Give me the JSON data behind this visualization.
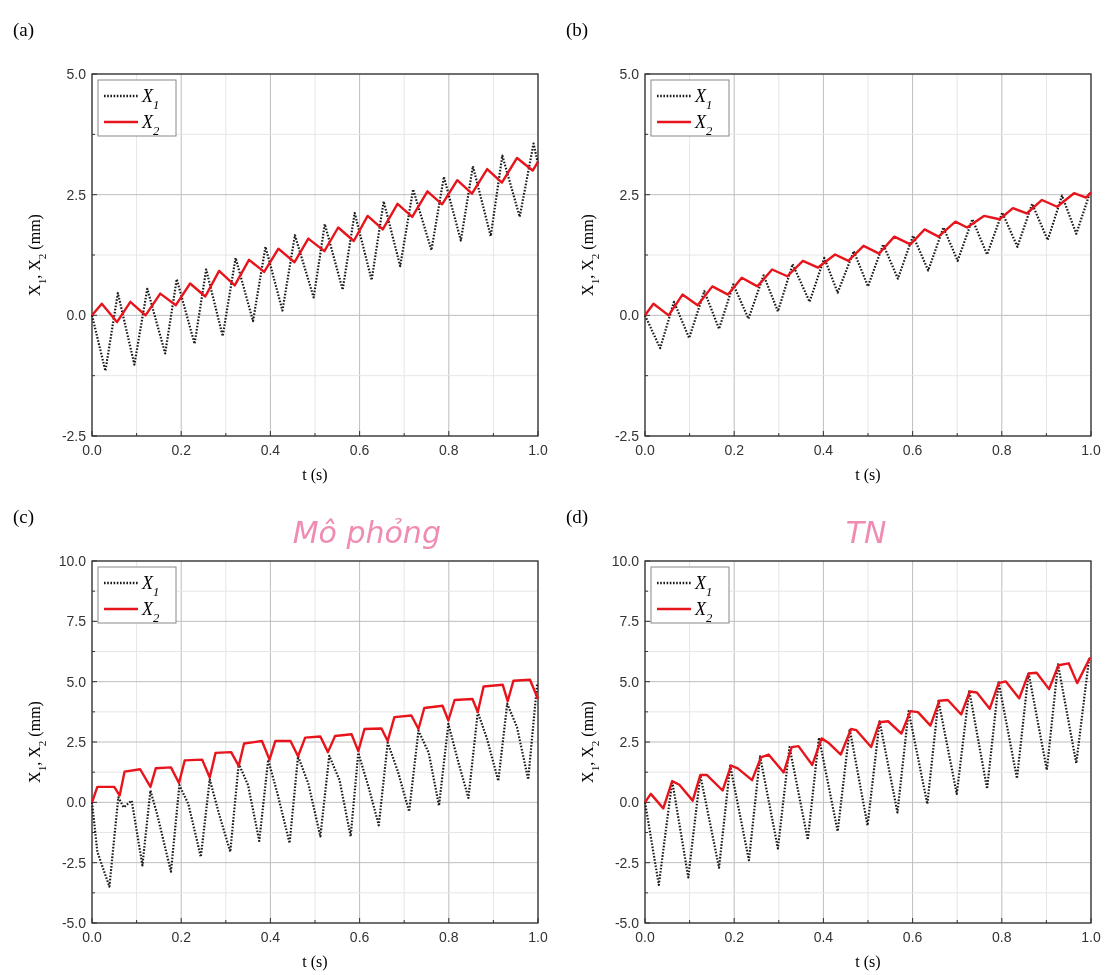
{
  "chart_data": [
    {
      "type": "line",
      "title": "(a)",
      "xlabel": "t (s)",
      "ylabel": "X$_{1}$, X$_{2}$ (mm)",
      "legend": "top left",
      "grid": true,
      "xlim": [
        0,
        1
      ],
      "xticks": [
        {
          "value": 0,
          "label": "0.0"
        },
        {
          "value": 0.1,
          "label": null
        },
        {
          "value": 0.2,
          "label": "0.2"
        },
        {
          "value": 0.3,
          "label": null
        },
        {
          "value": 0.4,
          "label": "0.4"
        },
        {
          "value": 0.5,
          "label": null
        },
        {
          "value": 0.6,
          "label": "0.6"
        },
        {
          "value": 0.7,
          "label": null
        },
        {
          "value": 0.8,
          "label": "0.8"
        },
        {
          "value": 0.9,
          "label": null
        },
        {
          "value": 1,
          "label": "1.0"
        }
      ],
      "ylim": [
        -2.5,
        5
      ],
      "yticks": [
        {
          "value": -2.5,
          "label": "-2.5"
        },
        {
          "value": -1.25,
          "label": null
        },
        {
          "value": 0,
          "label": "0.0"
        },
        {
          "value": 1.25,
          "label": null
        },
        {
          "value": 2.5,
          "label": "2.5"
        },
        {
          "value": 3.75,
          "label": null
        },
        {
          "value": 5,
          "label": "5.0"
        }
      ],
      "series": [
        {
          "name": "X$_{1}$",
          "color": "#1a1a1a",
          "line_style": "dotted",
          "x": [
            0,
            0.03,
            0.058,
            0.095,
            0.124,
            0.164,
            0.19,
            0.23,
            0.256,
            0.293,
            0.322,
            0.361,
            0.389,
            0.427,
            0.455,
            0.497,
            0.522,
            0.562,
            0.589,
            0.627,
            0.654,
            0.691,
            0.72,
            0.761,
            0.789,
            0.827,
            0.854,
            0.894,
            0.92,
            0.959,
            0.99,
            1
          ],
          "values": [
            0,
            -1.15,
            0.46,
            -1.02,
            0.55,
            -0.79,
            0.75,
            -0.59,
            0.95,
            -0.43,
            1.19,
            -0.12,
            1.42,
            0.1,
            1.66,
            0.37,
            1.89,
            0.53,
            2.12,
            0.73,
            2.36,
            1.02,
            2.61,
            1.35,
            2.87,
            1.55,
            3.09,
            1.64,
            3.31,
            2.04,
            3.56,
            3.14
          ]
        },
        {
          "name": "X$_{2}$",
          "color": "#e8141c",
          "line_style": "solid",
          "x": [
            0,
            0.022,
            0.056,
            0.086,
            0.12,
            0.153,
            0.188,
            0.22,
            0.254,
            0.285,
            0.32,
            0.352,
            0.386,
            0.418,
            0.454,
            0.485,
            0.521,
            0.552,
            0.587,
            0.618,
            0.652,
            0.685,
            0.718,
            0.752,
            0.785,
            0.819,
            0.852,
            0.886,
            0.919,
            0.953,
            0.988,
            1
          ],
          "values": [
            0,
            0.24,
            -0.14,
            0.28,
            0,
            0.45,
            0.21,
            0.66,
            0.39,
            0.92,
            0.62,
            1.15,
            0.9,
            1.38,
            1.1,
            1.59,
            1.33,
            1.82,
            1.54,
            2.06,
            1.78,
            2.31,
            2.04,
            2.57,
            2.3,
            2.8,
            2.52,
            3.03,
            2.75,
            3.26,
            3,
            3.18
          ]
        }
      ]
    },
    {
      "type": "line",
      "title": "(b)",
      "xlabel": "t (s)",
      "ylabel": "X$_{1}$, X$_{2}$ (mm)",
      "legend": "top left",
      "grid": true,
      "xlim": [
        0,
        1
      ],
      "xticks": [
        {
          "value": 0,
          "label": "0.0"
        },
        {
          "value": 0.1,
          "label": null
        },
        {
          "value": 0.2,
          "label": "0.2"
        },
        {
          "value": 0.3,
          "label": null
        },
        {
          "value": 0.4,
          "label": "0.4"
        },
        {
          "value": 0.5,
          "label": null
        },
        {
          "value": 0.6,
          "label": "0.6"
        },
        {
          "value": 0.7,
          "label": null
        },
        {
          "value": 0.8,
          "label": "0.8"
        },
        {
          "value": 0.9,
          "label": null
        },
        {
          "value": 1,
          "label": "1.0"
        }
      ],
      "ylim": [
        -2.5,
        5
      ],
      "yticks": [
        {
          "value": -2.5,
          "label": "-2.5"
        },
        {
          "value": -1.25,
          "label": null
        },
        {
          "value": 0,
          "label": "0.0"
        },
        {
          "value": 1.25,
          "label": null
        },
        {
          "value": 2.5,
          "label": "2.5"
        },
        {
          "value": 3.75,
          "label": null
        },
        {
          "value": 5,
          "label": "5.0"
        }
      ],
      "series": [
        {
          "name": "X$_{1}$",
          "color": "#1a1a1a",
          "line_style": "dotted",
          "x": [
            0,
            0.034,
            0.065,
            0.099,
            0.133,
            0.166,
            0.198,
            0.232,
            0.266,
            0.298,
            0.331,
            0.369,
            0.402,
            0.432,
            0.468,
            0.5,
            0.534,
            0.567,
            0.601,
            0.635,
            0.669,
            0.701,
            0.734,
            0.767,
            0.801,
            0.835,
            0.868,
            0.903,
            0.935,
            0.967,
            0.998
          ],
          "values": [
            0,
            -0.68,
            0.28,
            -0.47,
            0.5,
            -0.28,
            0.64,
            -0.07,
            0.83,
            0.08,
            1.06,
            0.28,
            1.19,
            0.47,
            1.33,
            0.6,
            1.47,
            0.76,
            1.65,
            0.93,
            1.82,
            1.13,
            1.99,
            1.26,
            2.13,
            1.42,
            2.31,
            1.56,
            2.48,
            1.69,
            2.55
          ]
        },
        {
          "name": "X$_{2}$",
          "color": "#e8141c",
          "line_style": "solid",
          "x": [
            0,
            0.019,
            0.053,
            0.084,
            0.118,
            0.151,
            0.186,
            0.217,
            0.252,
            0.285,
            0.319,
            0.354,
            0.388,
            0.426,
            0.456,
            0.49,
            0.525,
            0.559,
            0.595,
            0.627,
            0.658,
            0.696,
            0.722,
            0.76,
            0.795,
            0.825,
            0.856,
            0.89,
            0.924,
            0.962,
            0.989,
            1
          ],
          "values": [
            0,
            0.24,
            0,
            0.43,
            0.21,
            0.6,
            0.43,
            0.78,
            0.6,
            0.95,
            0.81,
            1.13,
            0.99,
            1.26,
            1.13,
            1.44,
            1.28,
            1.63,
            1.47,
            1.78,
            1.63,
            1.94,
            1.82,
            2.06,
            1.99,
            2.22,
            2.11,
            2.39,
            2.25,
            2.53,
            2.44,
            2.55
          ]
        }
      ]
    },
    {
      "type": "line",
      "title": "(c)",
      "xlabel": "t (s)",
      "ylabel": "X$_{1}$, X$_{2}$ (mm)",
      "legend": "top left",
      "grid": true,
      "annotations": [
        "Mô phỏng"
      ],
      "xlim": [
        0,
        1
      ],
      "xticks": [
        {
          "value": 0,
          "label": "0.0"
        },
        {
          "value": 0.1,
          "label": null
        },
        {
          "value": 0.2,
          "label": "0.2"
        },
        {
          "value": 0.3,
          "label": null
        },
        {
          "value": 0.4,
          "label": "0.4"
        },
        {
          "value": 0.5,
          "label": null
        },
        {
          "value": 0.6,
          "label": "0.6"
        },
        {
          "value": 0.7,
          "label": null
        },
        {
          "value": 0.8,
          "label": "0.8"
        },
        {
          "value": 0.9,
          "label": null
        },
        {
          "value": 1,
          "label": "1.0"
        }
      ],
      "ylim": [
        -5,
        10
      ],
      "yticks": [
        {
          "value": -5,
          "label": "-5.0"
        },
        {
          "value": -3.75,
          "label": null
        },
        {
          "value": -2.5,
          "label": "-2.5"
        },
        {
          "value": -1.25,
          "label": null
        },
        {
          "value": 0,
          "label": "0.0"
        },
        {
          "value": 1.25,
          "label": null
        },
        {
          "value": 2.5,
          "label": "2.5"
        },
        {
          "value": 3.75,
          "label": null
        },
        {
          "value": 5,
          "label": "5.0"
        },
        {
          "value": 6.25,
          "label": null
        },
        {
          "value": 7.5,
          "label": "7.5"
        },
        {
          "value": 8.75,
          "label": null
        },
        {
          "value": 10,
          "label": "10.0"
        }
      ],
      "series": [
        {
          "name": "X$_{1}$",
          "color": "#1a1a1a",
          "line_style": "dotted",
          "x": [
            0,
            0.012,
            0.039,
            0.059,
            0.071,
            0.089,
            0.113,
            0.131,
            0.146,
            0.177,
            0.196,
            0.216,
            0.244,
            0.264,
            0.285,
            0.31,
            0.329,
            0.35,
            0.375,
            0.395,
            0.416,
            0.443,
            0.462,
            0.485,
            0.512,
            0.532,
            0.555,
            0.58,
            0.597,
            0.62,
            0.643,
            0.663,
            0.686,
            0.711,
            0.732,
            0.755,
            0.778,
            0.799,
            0.821,
            0.844,
            0.865,
            0.886,
            0.911,
            0.931,
            0.953,
            0.978,
            0.998
          ],
          "values": [
            0,
            -2.05,
            -3.49,
            0.21,
            -0.21,
            0.07,
            -2.61,
            0.49,
            -0.49,
            -2.87,
            0.71,
            -0.07,
            -2.26,
            0.95,
            -0.49,
            -2.05,
            1.6,
            0.71,
            -1.6,
            1.76,
            0.35,
            -1.69,
            1.91,
            0.78,
            -1.41,
            1.93,
            0.92,
            -1.41,
            2.05,
            0.64,
            -0.95,
            2.47,
            1.27,
            -0.38,
            2.97,
            2.05,
            -0.14,
            3.25,
            1.69,
            0.18,
            3.74,
            2.61,
            0.89,
            4.09,
            3.11,
            0.95,
            4.9
          ]
        },
        {
          "name": "X$_{2}$",
          "color": "#e8141c",
          "line_style": "solid",
          "x": [
            0,
            0.012,
            0.05,
            0.062,
            0.073,
            0.108,
            0.131,
            0.143,
            0.177,
            0.195,
            0.208,
            0.247,
            0.264,
            0.277,
            0.312,
            0.329,
            0.341,
            0.381,
            0.398,
            0.411,
            0.445,
            0.462,
            0.478,
            0.512,
            0.529,
            0.545,
            0.582,
            0.597,
            0.611,
            0.649,
            0.663,
            0.678,
            0.716,
            0.732,
            0.745,
            0.786,
            0.799,
            0.813,
            0.853,
            0.865,
            0.878,
            0.921,
            0.932,
            0.945,
            0.982,
            1
          ],
          "values": [
            0,
            0.64,
            0.64,
            0.28,
            1.27,
            1.37,
            0.64,
            1.41,
            1.45,
            0.8,
            1.74,
            1.77,
            1.03,
            2.05,
            2.08,
            1.51,
            2.44,
            2.54,
            1.77,
            2.54,
            2.54,
            1.91,
            2.68,
            2.73,
            2.08,
            2.75,
            2.82,
            2.12,
            3.04,
            3.06,
            2.54,
            3.53,
            3.6,
            3.04,
            3.91,
            4,
            3.39,
            4.24,
            4.28,
            3.74,
            4.8,
            4.87,
            4.19,
            5.04,
            5.08,
            4.28
          ]
        }
      ]
    },
    {
      "type": "line",
      "title": "(d)",
      "xlabel": "t (s)",
      "ylabel": "X$_{1}$, X$_{2}$ (mm)",
      "legend": "top left",
      "grid": true,
      "annotations": [
        "TN"
      ],
      "xlim": [
        0,
        1
      ],
      "xticks": [
        {
          "value": 0,
          "label": "0.0"
        },
        {
          "value": 0.1,
          "label": null
        },
        {
          "value": 0.2,
          "label": "0.2"
        },
        {
          "value": 0.3,
          "label": null
        },
        {
          "value": 0.4,
          "label": "0.4"
        },
        {
          "value": 0.5,
          "label": null
        },
        {
          "value": 0.6,
          "label": "0.6"
        },
        {
          "value": 0.7,
          "label": null
        },
        {
          "value": 0.8,
          "label": "0.8"
        },
        {
          "value": 0.9,
          "label": null
        },
        {
          "value": 1,
          "label": "1.0"
        }
      ],
      "ylim": [
        -5,
        10
      ],
      "yticks": [
        {
          "value": -5,
          "label": "-5.0"
        },
        {
          "value": -3.75,
          "label": null
        },
        {
          "value": -2.5,
          "label": "-2.5"
        },
        {
          "value": -1.25,
          "label": null
        },
        {
          "value": 0,
          "label": "0.0"
        },
        {
          "value": 1.25,
          "label": null
        },
        {
          "value": 2.5,
          "label": "2.5"
        },
        {
          "value": 3.75,
          "label": null
        },
        {
          "value": 5,
          "label": "5.0"
        },
        {
          "value": 6.25,
          "label": null
        },
        {
          "value": 7.5,
          "label": "7.5"
        },
        {
          "value": 8.75,
          "label": null
        },
        {
          "value": 10,
          "label": "10.0"
        }
      ],
      "series": [
        {
          "name": "X$_{1}$",
          "color": "#1a1a1a",
          "line_style": "dotted",
          "x": [
            0,
            0.031,
            0.061,
            0.097,
            0.124,
            0.166,
            0.191,
            0.233,
            0.258,
            0.298,
            0.324,
            0.365,
            0.39,
            0.432,
            0.459,
            0.499,
            0.526,
            0.566,
            0.591,
            0.633,
            0.658,
            0.699,
            0.727,
            0.767,
            0.793,
            0.834,
            0.86,
            0.901,
            0.926,
            0.967,
            0.996
          ],
          "values": [
            0,
            -3.42,
            0.88,
            -3.11,
            1.13,
            -2.71,
            1.52,
            -2.4,
            1.91,
            -1.91,
            2.29,
            -1.55,
            2.68,
            -1.2,
            3.04,
            -0.96,
            3.36,
            -0.42,
            3.78,
            -0.07,
            4.21,
            0.35,
            4.63,
            0.56,
            4.97,
            0.99,
            5.37,
            1.34,
            5.72,
            1.62,
            6
          ]
        },
        {
          "name": "X$_{2}$",
          "color": "#e8141c",
          "line_style": "solid",
          "x": [
            0,
            0.013,
            0.041,
            0.061,
            0.077,
            0.107,
            0.124,
            0.139,
            0.174,
            0.193,
            0.208,
            0.24,
            0.26,
            0.277,
            0.311,
            0.329,
            0.344,
            0.375,
            0.396,
            0.411,
            0.439,
            0.462,
            0.474,
            0.507,
            0.526,
            0.545,
            0.575,
            0.595,
            0.612,
            0.64,
            0.66,
            0.679,
            0.709,
            0.728,
            0.744,
            0.773,
            0.793,
            0.809,
            0.839,
            0.86,
            0.878,
            0.906,
            0.927,
            0.95,
            0.969,
            0.998
          ],
          "values": [
            0,
            0.35,
            -0.25,
            0.88,
            0.73,
            0.07,
            1.13,
            1.13,
            0.49,
            1.52,
            1.41,
            0.92,
            1.86,
            1.98,
            1.24,
            2.29,
            2.33,
            1.55,
            2.65,
            2.47,
            1.98,
            3.04,
            2.99,
            2.29,
            3.32,
            3.36,
            2.85,
            3.78,
            3.74,
            3.18,
            4.21,
            4.24,
            3.64,
            4.59,
            4.55,
            3.88,
            4.94,
            5.01,
            4.31,
            5.34,
            5.37,
            4.69,
            5.68,
            5.76,
            4.94,
            6
          ]
        }
      ]
    }
  ]
}
